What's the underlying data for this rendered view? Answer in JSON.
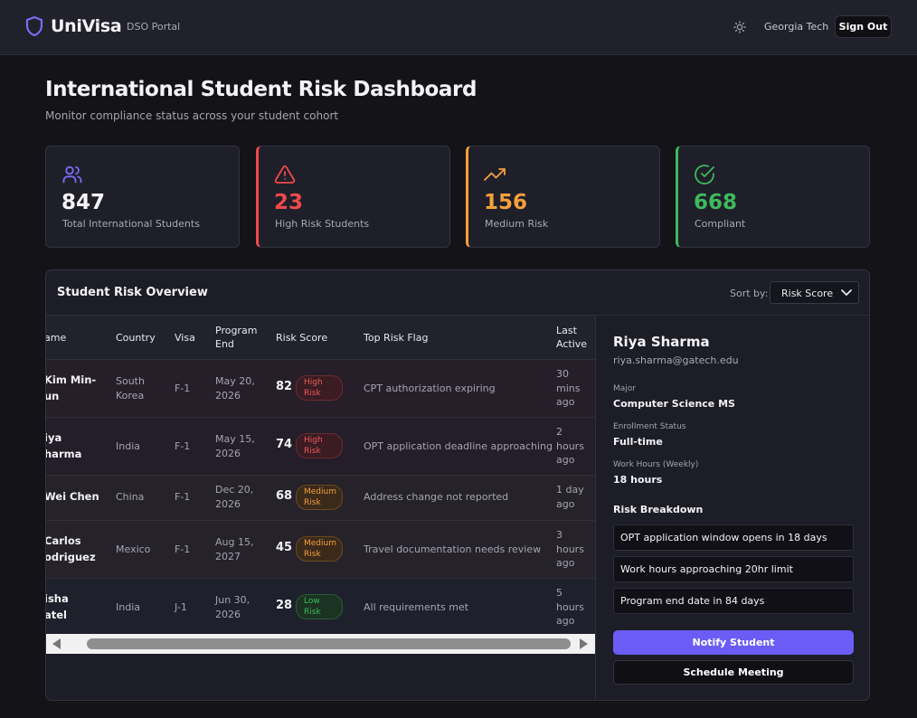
{
  "header": {
    "brand": "UniVisa",
    "portal": "DSO Portal",
    "school": "Georgia Tech",
    "sign_out": "Sign Out"
  },
  "page": {
    "title": "International Student Risk Dashboard",
    "subtitle": "Monitor compliance status across your student cohort"
  },
  "stats": [
    {
      "value": "847",
      "label": "Total International Students",
      "icon": "users-icon",
      "color": "#e8e8ee"
    },
    {
      "value": "23",
      "label": "High Risk Students",
      "icon": "alert-triangle-icon",
      "color": "#ef4a4a"
    },
    {
      "value": "156",
      "label": "Medium Risk",
      "icon": "trending-up-icon",
      "color": "#f4a03c"
    },
    {
      "value": "668",
      "label": "Compliant",
      "icon": "check-circle-icon",
      "color": "#3dba5c"
    }
  ],
  "overview": {
    "title": "Student Risk Overview",
    "sort_label": "Sort by:",
    "sort_value": "Risk Score"
  },
  "table": {
    "headers": {
      "name": "ame",
      "country": "Country",
      "visa": "Visa",
      "program_end_1": "Program",
      "program_end_2": "End",
      "risk_score": "Risk Score",
      "top_flag": "Top Risk Flag",
      "last_active_1": "Last",
      "last_active_2": "Active"
    },
    "rows": [
      {
        "name1": "Kim Min-",
        "name2": "un",
        "country1": "South",
        "country2": "Korea",
        "visa": "F-1",
        "end1": "May 20,",
        "end2": "2026",
        "score": "82",
        "risk1": "High",
        "risk2": "Risk",
        "flag": "CPT authorization expiring",
        "active1": "30",
        "active2": "mins",
        "active3": "ago"
      },
      {
        "name1": "iya",
        "name2": "harma",
        "country1": "India",
        "country2": "",
        "visa": "F-1",
        "end1": "May 15,",
        "end2": "2026",
        "score": "74",
        "risk1": "High",
        "risk2": "Risk",
        "flag": "OPT application deadline approaching",
        "active1": "2",
        "active2": "hours",
        "active3": "ago"
      },
      {
        "name1": "Wei Chen",
        "name2": "",
        "country1": "China",
        "country2": "",
        "visa": "F-1",
        "end1": "Dec 20,",
        "end2": "2026",
        "score": "68",
        "risk1": "Medium",
        "risk2": "Risk",
        "flag": "Address change not reported",
        "active1": "1 day",
        "active2": "ago",
        "active3": ""
      },
      {
        "name1": "Carlos",
        "name2": "odriguez",
        "country1": "Mexico",
        "country2": "",
        "visa": "F-1",
        "end1": "Aug 15,",
        "end2": "2027",
        "score": "45",
        "risk1": "Medium",
        "risk2": "Risk",
        "flag": "Travel documentation needs review",
        "active1": "3",
        "active2": "hours",
        "active3": "ago"
      },
      {
        "name1": "isha",
        "name2": "atel",
        "country1": "India",
        "country2": "",
        "visa": "J-1",
        "end1": "Jun 30,",
        "end2": "2026",
        "score": "28",
        "risk1": "Low",
        "risk2": "Risk",
        "flag": "All requirements met",
        "active1": "5",
        "active2": "hours",
        "active3": "ago"
      }
    ]
  },
  "detail": {
    "name": "Riya Sharma",
    "email": "riya.sharma@gatech.edu",
    "major_label": "Major",
    "major": "Computer Science MS",
    "enrollment_label": "Enrollment Status",
    "enrollment": "Full-time",
    "work_label": "Work Hours (Weekly)",
    "work": "18 hours",
    "breakdown_title": "Risk Breakdown",
    "breakdown": [
      "OPT application window opens in 18 days",
      "Work hours approaching 20hr limit",
      "Program end date in 84 days"
    ],
    "notify": "Notify Student",
    "schedule": "Schedule Meeting"
  }
}
